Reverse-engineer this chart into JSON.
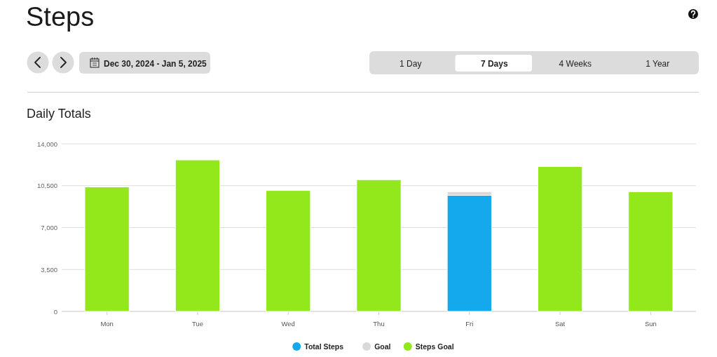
{
  "chart_data": {
    "type": "bar",
    "title": "Steps",
    "subtitle": "Daily Totals",
    "categories": [
      "Mon",
      "Tue",
      "Wed",
      "Thu",
      "Fri",
      "Sat",
      "Sun"
    ],
    "stacked": true,
    "series": [
      {
        "name": "Total Steps",
        "color": "#13a9ec",
        "values": [
          null,
          null,
          null,
          null,
          9700,
          null,
          null
        ]
      },
      {
        "name": "Goal",
        "color": "#d9d9d9",
        "values": [
          null,
          null,
          null,
          null,
          300,
          null,
          null
        ]
      },
      {
        "name": "Steps Goal",
        "color": "#92e81b",
        "values": [
          10400,
          12650,
          10100,
          11000,
          null,
          12100,
          10000
        ]
      }
    ],
    "ylim": [
      0,
      14000
    ],
    "yticks": [
      0,
      {
        "value": 3500,
        "label": "3,500"
      },
      {
        "value": 7000,
        "label": "7,000"
      },
      {
        "value": 10500,
        "label": "10,500"
      },
      {
        "value": 14000,
        "label": "14,000"
      }
    ],
    "grid": "y",
    "legend": "bottom",
    "annotations": [
      "Dec 30, 2024 - Jan 5, 2025",
      "1 Day",
      "7 Days",
      "4 Weeks",
      "1 Year"
    ]
  }
}
